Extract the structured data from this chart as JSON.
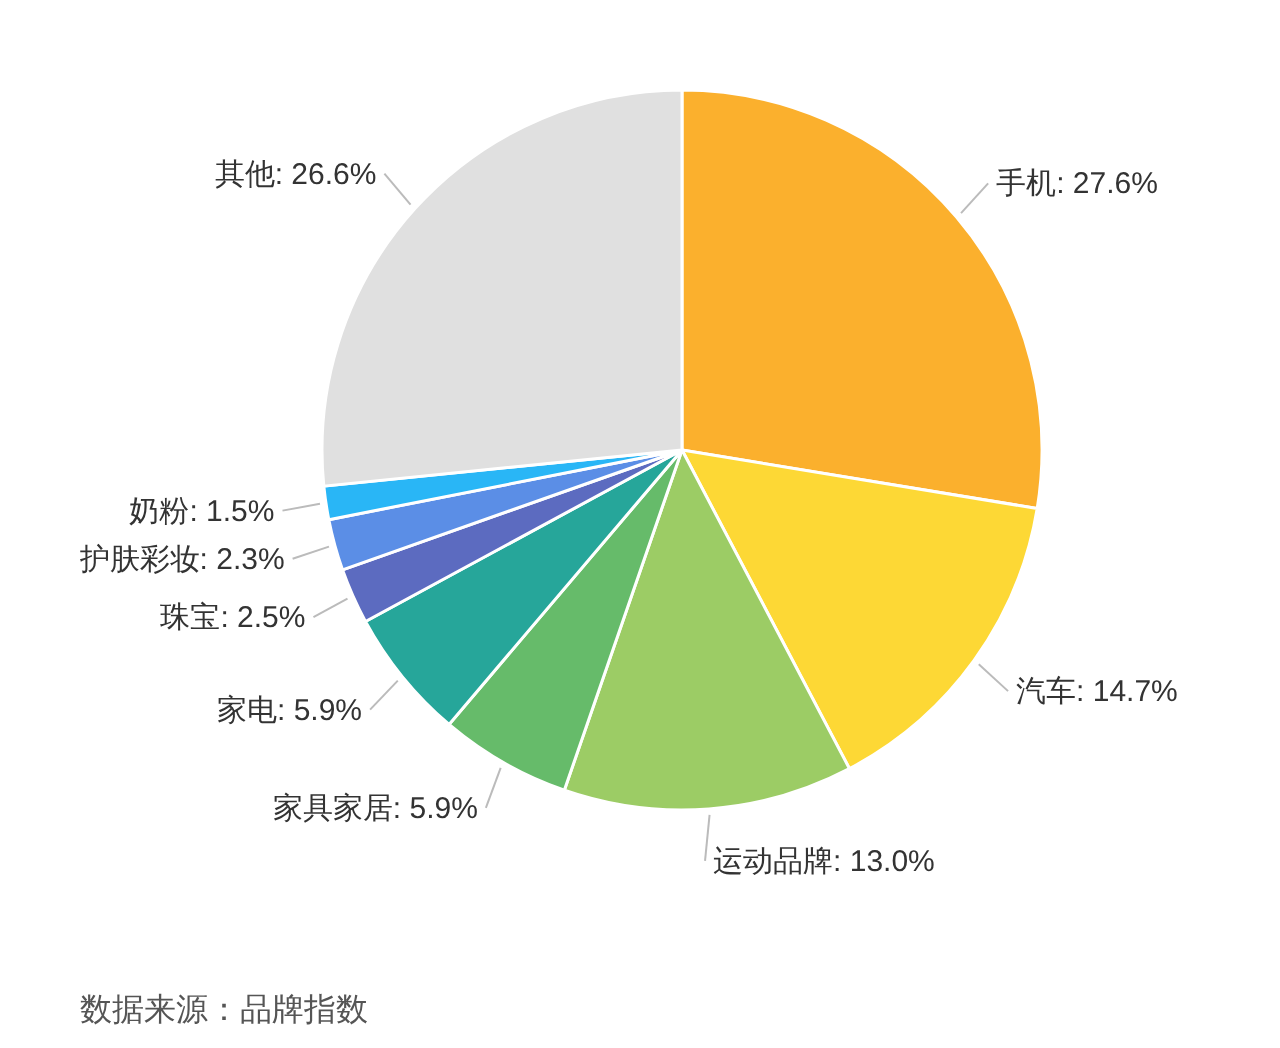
{
  "chart_data": {
    "type": "pie",
    "categories": [
      "手机",
      "汽车",
      "运动品牌",
      "家具家居",
      "家电",
      "珠宝",
      "护肤彩妆",
      "奶粉",
      "其他"
    ],
    "values": [
      27.6,
      14.7,
      13.0,
      5.9,
      5.9,
      2.5,
      2.3,
      1.5,
      26.6
    ],
    "value_labels": [
      "27.6%",
      "14.7%",
      "13.0%",
      "5.9%",
      "5.9%",
      "2.5%",
      "2.3%",
      "1.5%",
      "26.6%"
    ],
    "colors": [
      "#fbb02d",
      "#fdd835",
      "#9ccc65",
      "#66bb6a",
      "#26a69a",
      "#5c6bc0",
      "#5b8ee6",
      "#29b6f6",
      "#e0e0e0"
    ],
    "annotations": [
      "数据来源：品牌指数"
    ]
  }
}
